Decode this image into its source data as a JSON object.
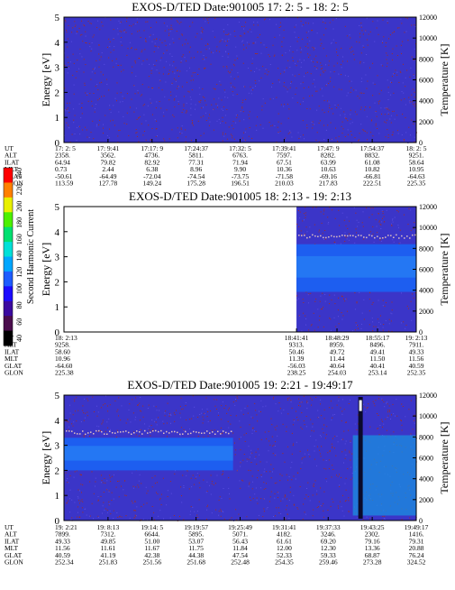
{
  "page": {
    "background": "#ffffff"
  },
  "colors": {
    "panel_bg": "#3b35c8",
    "noise": "#a4301f",
    "band": "#1d5ef0",
    "band_bright": "#2a8df5",
    "axis": "#000000"
  },
  "colorbar": {
    "title": "Second Harmonic Current",
    "ticks": [
      "40",
      "60",
      "80",
      "100",
      "120",
      "140",
      "160",
      "180",
      "200",
      "220",
      "240"
    ],
    "colors": [
      "#000000",
      "#4b0d4d",
      "#3b0aa0",
      "#1c0cff",
      "#1e5cff",
      "#00a6ff",
      "#00e0d8",
      "#00e070",
      "#4cf000",
      "#e8f000",
      "#ff8000",
      "#ff0000"
    ]
  },
  "orbit_row_labels": [
    "UT",
    "ALT",
    "ILAT",
    "MLT",
    "GLAT",
    "GLON"
  ],
  "chart_data": [
    {
      "type": "heatmap",
      "title": "EXOS-D/TED   Date:901005  17: 2: 5 - 18: 2: 5",
      "ylabel": "Energy [eV]",
      "y2label": "Temperature [K]",
      "ylim": [
        0,
        5
      ],
      "y2lim": [
        0,
        12000
      ],
      "yticks": [
        "0",
        "1",
        "2",
        "3",
        "4",
        "5"
      ],
      "y2ticks": [
        "0",
        "2000",
        "4000",
        "6000",
        "8000",
        "10000",
        "12000"
      ],
      "data_start": 0.0,
      "band": null,
      "orbit_cols": [
        [
          "17: 2: 5",
          "2358.",
          "64.94",
          "0.73",
          "-50.61",
          "113.59"
        ],
        [
          "17: 9:41",
          "3562.",
          "79.82",
          "2.44",
          "-64.49",
          "127.78"
        ],
        [
          "17:17: 9",
          "4736.",
          "82.92",
          "6.38",
          "-72.04",
          "149.24"
        ],
        [
          "17:24:37",
          "5811.",
          "77.31",
          "8.96",
          "-74.54",
          "175.28"
        ],
        [
          "17:32: 5",
          "6763.",
          "71.94",
          "9.90",
          "-73.75",
          "196.51"
        ],
        [
          "17:39:41",
          "7597.",
          "67.51",
          "10.36",
          "-71.58",
          "210.03"
        ],
        [
          "17:47: 9",
          "8282.",
          "63.99",
          "10.63",
          "-69.16",
          "217.83"
        ],
        [
          "17:54:37",
          "8832.",
          "61.08",
          "10.82",
          "-66.81",
          "222.51"
        ],
        [
          "18: 2: 5",
          "9251.",
          "58.64",
          "10.95",
          "-64.63",
          "225.35"
        ]
      ]
    },
    {
      "type": "heatmap",
      "title": "EXOS-D/TED   Date:901005  18: 2:13 - 19: 2:13",
      "ylabel": "Energy [eV]",
      "y2label": "Temperature [K]",
      "ylim": [
        0,
        5
      ],
      "y2lim": [
        0,
        12000
      ],
      "yticks": [
        "0",
        "1",
        "2",
        "3",
        "4",
        "5"
      ],
      "y2ticks": [
        "0",
        "2000",
        "4000",
        "6000",
        "8000",
        "10000",
        "12000"
      ],
      "data_start": 0.66,
      "band": {
        "ymin": 1.6,
        "ymax": 3.5,
        "temperature_trace_eV": 3.8
      },
      "orbit_cols": [
        [
          "18: 2:13",
          "9258.",
          "58.60",
          "10.96",
          "-64.60",
          "225.38"
        ],
        [
          "18:41:41",
          "9313.",
          "50.46",
          "11.39",
          "-56.03",
          "238.25"
        ],
        [
          "18:48:29",
          "8959.",
          "49.72",
          "11.44",
          "40.64",
          "254.03"
        ],
        [
          "18:55:17",
          "8496.",
          "49.41",
          "11.50",
          "40.41",
          "253.14"
        ],
        [
          "19: 2:13",
          "7911.",
          "49.33",
          "11.56",
          "40.59",
          "252.35"
        ]
      ]
    },
    {
      "type": "heatmap",
      "title": "EXOS-D/TED   Date:901005  19: 2:21 - 19:49:17",
      "ylabel": "Energy [eV]",
      "y2label": "Temperature [K]",
      "ylim": [
        0,
        5
      ],
      "y2lim": [
        0,
        12000
      ],
      "yticks": [
        "0",
        "1",
        "2",
        "3",
        "4",
        "5"
      ],
      "y2ticks": [
        "0",
        "2000",
        "4000",
        "6000",
        "8000",
        "10000",
        "12000"
      ],
      "data_start": 0.0,
      "band": {
        "ymin": 2.0,
        "ymax": 3.3,
        "temperature_trace_eV": 3.5
      },
      "orbit_cols": [
        [
          "19: 2:21",
          "7899.",
          "49.33",
          "11.56",
          "40.59",
          "252.34"
        ],
        [
          "19: 8:13",
          "7312.",
          "49.85",
          "11.61",
          "41.19",
          "251.83"
        ],
        [
          "19:14: 5",
          "6644.",
          "51.00",
          "11.67",
          "42.38",
          "251.56"
        ],
        [
          "19:19:57",
          "5895.",
          "53.07",
          "11.75",
          "44.38",
          "251.68"
        ],
        [
          "19:25:49",
          "5071.",
          "56.43",
          "11.84",
          "47.54",
          "252.48"
        ],
        [
          "19:31:41",
          "4182.",
          "61.61",
          "12.00",
          "52.33",
          "254.35"
        ],
        [
          "19:37:33",
          "3246.",
          "69.20",
          "12.30",
          "59.33",
          "259.46"
        ],
        [
          "19:43:25",
          "2302.",
          "79.16",
          "13.36",
          "68.87",
          "273.28"
        ],
        [
          "19:49:17",
          "1416.",
          "79.31",
          "20.88",
          "76.24",
          "324.52"
        ]
      ]
    }
  ]
}
